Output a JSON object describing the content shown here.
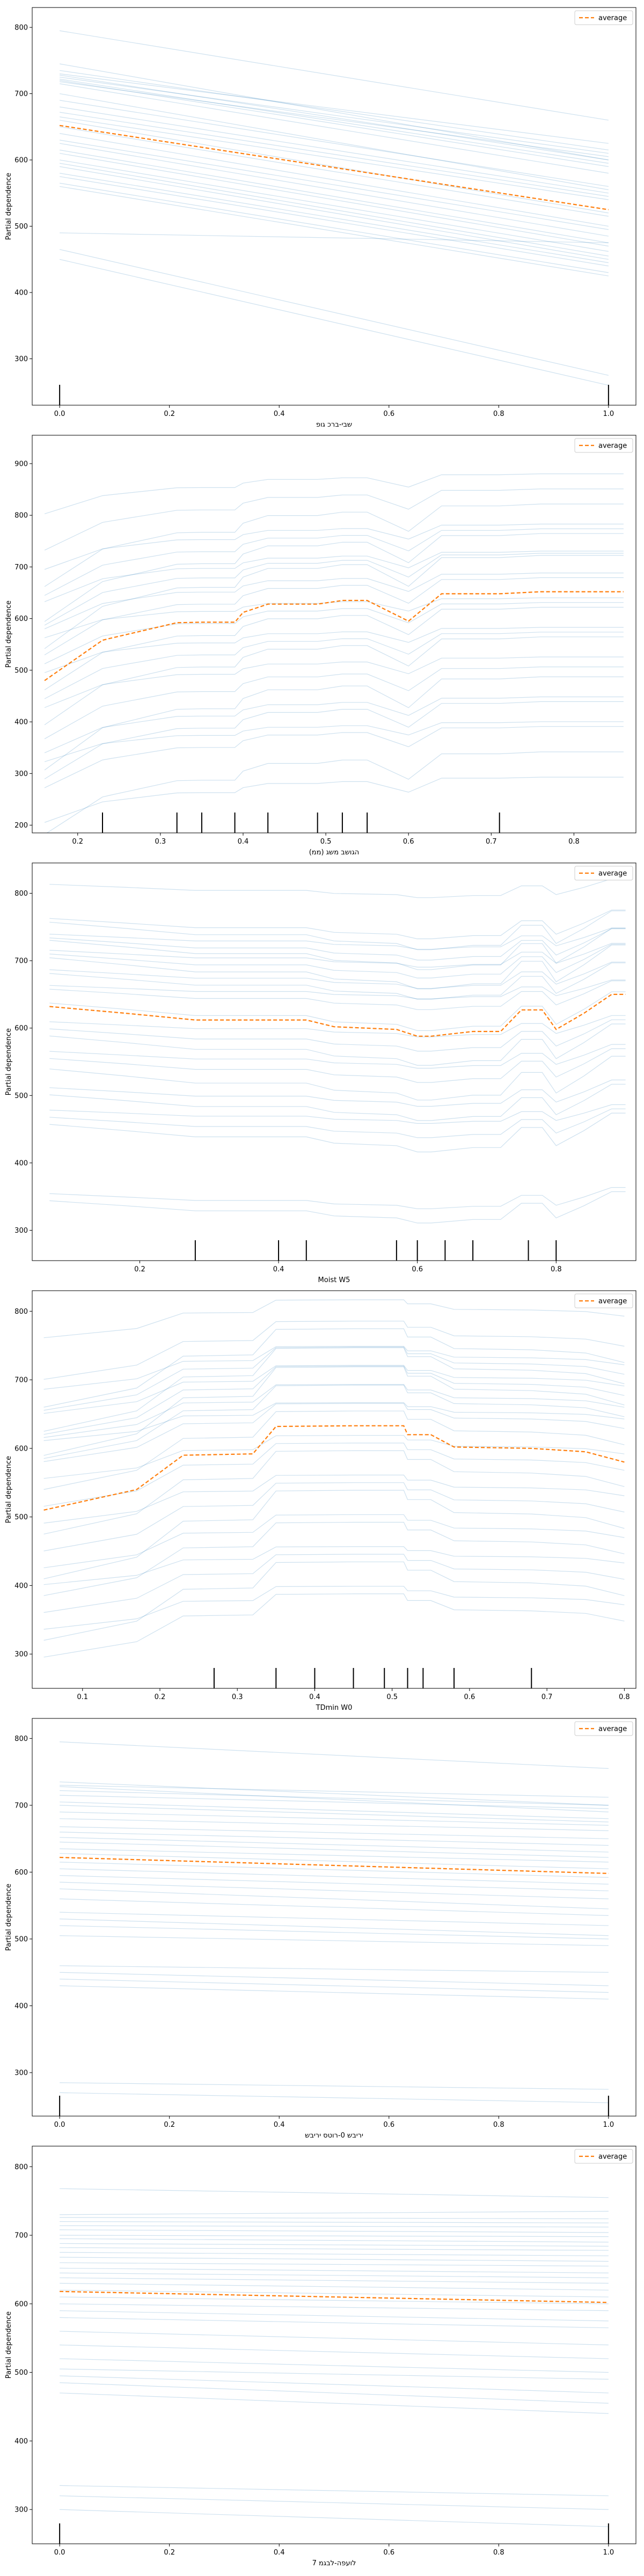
{
  "chart_data": [
    {
      "type": "line",
      "subtype": "partial-dependence-ice",
      "xlabel": "שבי-ברכ גופ",
      "ylabel": "Partial dependence",
      "xlim": [
        -0.05,
        1.05
      ],
      "ylim": [
        230,
        830
      ],
      "xticks": [
        0.0,
        0.2,
        0.4,
        0.6,
        0.8,
        1.0
      ],
      "yticks": [
        300,
        400,
        500,
        600,
        700,
        800
      ],
      "grid": false,
      "legend_position": "top-right",
      "deciles": [
        0.0,
        1.0
      ],
      "average": {
        "name": "average",
        "x": [
          0.0,
          1.0
        ],
        "y": [
          652,
          525
        ]
      },
      "ice_ends": [
        [
          795,
          660
        ],
        [
          745,
          600
        ],
        [
          735,
          615
        ],
        [
          730,
          625
        ],
        [
          728,
          600
        ],
        [
          725,
          610
        ],
        [
          722,
          595
        ],
        [
          720,
          590
        ],
        [
          718,
          605
        ],
        [
          715,
          580
        ],
        [
          700,
          555
        ],
        [
          690,
          560
        ],
        [
          680,
          550
        ],
        [
          672,
          545
        ],
        [
          665,
          540
        ],
        [
          660,
          520
        ],
        [
          650,
          515
        ],
        [
          640,
          500
        ],
        [
          630,
          495
        ],
        [
          625,
          485
        ],
        [
          615,
          475
        ],
        [
          610,
          470
        ],
        [
          600,
          462
        ],
        [
          595,
          455
        ],
        [
          590,
          450
        ],
        [
          580,
          445
        ],
        [
          575,
          440
        ],
        [
          565,
          430
        ],
        [
          560,
          425
        ],
        [
          490,
          475
        ],
        [
          465,
          275
        ],
        [
          450,
          260
        ]
      ]
    },
    {
      "type": "line",
      "subtype": "partial-dependence-ice",
      "xlabel": "(ממ) הגושב משג",
      "ylabel": "Partial dependence",
      "xlim": [
        0.145,
        0.875
      ],
      "ylim": [
        185,
        955
      ],
      "xticks": [
        0.2,
        0.3,
        0.4,
        0.5,
        0.6,
        0.7,
        0.8
      ],
      "yticks": [
        200,
        300,
        400,
        500,
        600,
        700,
        800,
        900
      ],
      "grid": false,
      "legend_position": "top-right",
      "deciles": [
        0.23,
        0.32,
        0.35,
        0.39,
        0.43,
        0.49,
        0.52,
        0.55,
        0.71
      ],
      "x": [
        0.16,
        0.23,
        0.24,
        0.32,
        0.35,
        0.39,
        0.4,
        0.43,
        0.49,
        0.52,
        0.55,
        0.6,
        0.64,
        0.71,
        0.76,
        0.86
      ],
      "average": {
        "name": "average",
        "y": [
          480,
          558,
          562,
          592,
          593,
          593,
          612,
          628,
          628,
          635,
          635,
          595,
          648,
          648,
          652,
          652
        ]
      },
      "ice_levels": [
        860,
        820,
        780,
        760,
        740,
        720,
        705,
        690,
        675,
        660,
        640,
        620,
        600,
        580,
        560,
        540,
        520,
        500,
        470,
        440,
        420,
        400,
        380,
        360,
        300,
        270
      ]
    },
    {
      "type": "line",
      "subtype": "partial-dependence-ice",
      "xlabel": "Moist W5",
      "ylabel": "Partial dependence",
      "xlim": [
        0.045,
        0.915
      ],
      "ylim": [
        255,
        845
      ],
      "xticks": [
        0.2,
        0.4,
        0.6,
        0.8
      ],
      "yticks": [
        300,
        400,
        500,
        600,
        700,
        800
      ],
      "grid": false,
      "legend_position": "top-right",
      "deciles": [
        0.28,
        0.4,
        0.44,
        0.57,
        0.6,
        0.64,
        0.68,
        0.76,
        0.8
      ],
      "x": [
        0.07,
        0.18,
        0.28,
        0.4,
        0.44,
        0.48,
        0.57,
        0.6,
        0.62,
        0.68,
        0.72,
        0.75,
        0.78,
        0.8,
        0.84,
        0.88,
        0.9
      ],
      "average": {
        "name": "average",
        "y": [
          632,
          622,
          612,
          612,
          612,
          602,
          598,
          588,
          588,
          595,
          595,
          627,
          627,
          598,
          622,
          650,
          650
        ]
      },
      "ice_levels": [
        805,
        750,
        740,
        730,
        720,
        712,
        705,
        695,
        685,
        675,
        665,
        655,
        645,
        620,
        600,
        585,
        570,
        555,
        540,
        520,
        500,
        485,
        470,
        455,
        440,
        345,
        330
      ]
    },
    {
      "type": "line",
      "subtype": "partial-dependence-ice",
      "xlabel": "TDmin W0",
      "ylabel": "Partial dependence",
      "xlim": [
        0.035,
        0.815
      ],
      "ylim": [
        250,
        830
      ],
      "xticks": [
        0.1,
        0.2,
        0.3,
        0.4,
        0.5,
        0.6,
        0.7,
        0.8
      ],
      "yticks": [
        300,
        400,
        500,
        600,
        700,
        800
      ],
      "grid": false,
      "legend_position": "top-right",
      "deciles": [
        0.27,
        0.35,
        0.4,
        0.45,
        0.49,
        0.52,
        0.54,
        0.58,
        0.68
      ],
      "x": [
        0.05,
        0.17,
        0.23,
        0.32,
        0.35,
        0.45,
        0.515,
        0.52,
        0.55,
        0.58,
        0.68,
        0.75,
        0.8
      ],
      "average": {
        "name": "average",
        "y": [
          510,
          540,
          590,
          592,
          632,
          633,
          633,
          620,
          620,
          602,
          600,
          595,
          580
        ]
      },
      "ice_levels": [
        800,
        760,
        740,
        730,
        720,
        710,
        700,
        690,
        680,
        670,
        660,
        650,
        640,
        620,
        600,
        580,
        560,
        540,
        520,
        500,
        480,
        460,
        440,
        420,
        400,
        380,
        360
      ]
    },
    {
      "type": "line",
      "subtype": "partial-dependence-ice",
      "xlabel": "יריבש 0-רוטס יריבש",
      "ylabel": "Partial dependence",
      "xlim": [
        -0.05,
        1.05
      ],
      "ylim": [
        235,
        830
      ],
      "xticks": [
        0.0,
        0.2,
        0.4,
        0.6,
        0.8,
        1.0
      ],
      "yticks": [
        300,
        400,
        500,
        600,
        700,
        800
      ],
      "grid": false,
      "legend_position": "top-right",
      "deciles": [
        0.0,
        1.0
      ],
      "average": {
        "name": "average",
        "x": [
          0.0,
          1.0
        ],
        "y": [
          622,
          598
        ]
      },
      "ice_ends": [
        [
          795,
          755
        ],
        [
          735,
          700
        ],
        [
          730,
          712
        ],
        [
          728,
          690
        ],
        [
          722,
          700
        ],
        [
          715,
          695
        ],
        [
          705,
          680
        ],
        [
          700,
          675
        ],
        [
          690,
          670
        ],
        [
          680,
          662
        ],
        [
          668,
          650
        ],
        [
          660,
          640
        ],
        [
          652,
          630
        ],
        [
          645,
          622
        ],
        [
          635,
          615
        ],
        [
          628,
          605
        ],
        [
          615,
          592
        ],
        [
          605,
          582
        ],
        [
          595,
          572
        ],
        [
          585,
          560
        ],
        [
          575,
          545
        ],
        [
          560,
          535
        ],
        [
          540,
          520
        ],
        [
          530,
          505
        ],
        [
          520,
          500
        ],
        [
          505,
          490
        ],
        [
          460,
          450
        ],
        [
          450,
          430
        ],
        [
          440,
          420
        ],
        [
          430,
          410
        ],
        [
          285,
          275
        ],
        [
          270,
          255
        ]
      ]
    },
    {
      "type": "line",
      "subtype": "partial-dependence-ice",
      "xlabel": "7 לועפה-לבגמ",
      "ylabel": "Partial dependence",
      "xlim": [
        -0.05,
        1.05
      ],
      "ylim": [
        250,
        830
      ],
      "xticks": [
        0.0,
        0.2,
        0.4,
        0.6,
        0.8,
        1.0
      ],
      "yticks": [
        300,
        400,
        500,
        600,
        700,
        800
      ],
      "grid": false,
      "legend_position": "top-right",
      "deciles": [
        0.0,
        1.0
      ],
      "average": {
        "name": "average",
        "x": [
          0.0,
          1.0
        ],
        "y": [
          618,
          602
        ]
      },
      "ice_ends": [
        [
          768,
          755
        ],
        [
          730,
          735
        ],
        [
          726,
          724
        ],
        [
          720,
          718
        ],
        [
          714,
          712
        ],
        [
          708,
          704
        ],
        [
          700,
          698
        ],
        [
          695,
          690
        ],
        [
          688,
          684
        ],
        [
          682,
          678
        ],
        [
          675,
          670
        ],
        [
          668,
          662
        ],
        [
          660,
          655
        ],
        [
          652,
          645
        ],
        [
          645,
          638
        ],
        [
          638,
          630
        ],
        [
          630,
          620
        ],
        [
          620,
          610
        ],
        [
          610,
          600
        ],
        [
          600,
          590
        ],
        [
          590,
          575
        ],
        [
          580,
          565
        ],
        [
          560,
          540
        ],
        [
          540,
          520
        ],
        [
          520,
          500
        ],
        [
          505,
          490
        ],
        [
          495,
          470
        ],
        [
          485,
          455
        ],
        [
          470,
          440
        ],
        [
          335,
          320
        ],
        [
          320,
          300
        ],
        [
          300,
          275
        ]
      ]
    }
  ]
}
